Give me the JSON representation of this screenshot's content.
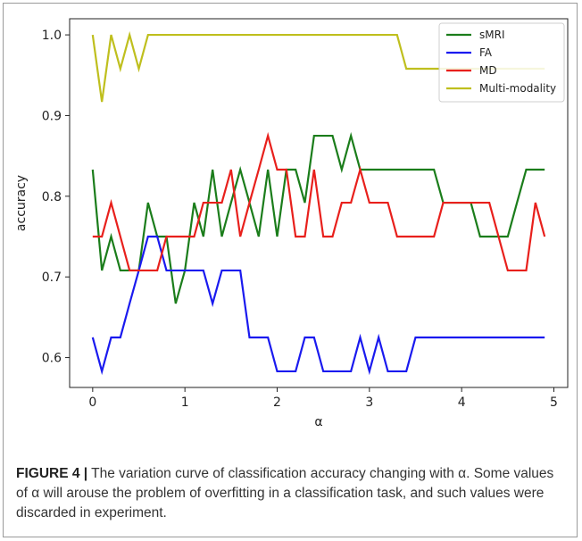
{
  "caption": {
    "figure_label": "FIGURE 4 |",
    "text": "The variation curve of classification accuracy changing with α. Some values of α will arouse the problem of overfitting in a classification task, and such values were discarded in experiment."
  },
  "chart_data": {
    "type": "line",
    "title": "",
    "xlabel": "α",
    "ylabel": "accuracy",
    "xlim": [
      -0.25,
      5.15
    ],
    "ylim": [
      0.563,
      1.02
    ],
    "xticks": [
      0,
      1,
      2,
      3,
      4,
      5
    ],
    "yticks": [
      0.6,
      0.7,
      0.8,
      0.9,
      1.0
    ],
    "xtick_labels": [
      "0",
      "1",
      "2",
      "3",
      "4",
      "5"
    ],
    "ytick_labels": [
      "0.6",
      "0.7",
      "0.8",
      "0.9",
      "1.0"
    ],
    "grid": false,
    "legend_position": "top-right",
    "x": [
      0.0,
      0.1,
      0.2,
      0.3,
      0.4,
      0.5,
      0.6,
      0.7,
      0.8,
      0.9,
      1.0,
      1.1,
      1.2,
      1.3,
      1.4,
      1.5,
      1.6,
      1.7,
      1.8,
      1.9,
      2.0,
      2.1,
      2.2,
      2.3,
      2.4,
      2.5,
      2.6,
      2.7,
      2.8,
      2.9,
      3.0,
      3.1,
      3.2,
      3.3,
      3.4,
      3.5,
      3.6,
      3.7,
      3.8,
      3.9,
      4.0,
      4.1,
      4.2,
      4.3,
      4.4,
      4.5,
      4.6,
      4.7,
      4.8,
      4.9
    ],
    "series": [
      {
        "name": "sMRI",
        "color": "#1b7d1b",
        "values": [
          0.833,
          0.708,
          0.75,
          0.708,
          0.708,
          0.708,
          0.792,
          0.75,
          0.75,
          0.667,
          0.708,
          0.792,
          0.75,
          0.833,
          0.75,
          0.792,
          0.833,
          0.792,
          0.75,
          0.833,
          0.75,
          0.833,
          0.833,
          0.792,
          0.875,
          0.875,
          0.875,
          0.833,
          0.875,
          0.833,
          0.833,
          0.833,
          0.833,
          0.833,
          0.833,
          0.833,
          0.833,
          0.833,
          0.792,
          0.792,
          0.792,
          0.792,
          0.75,
          0.75,
          0.75,
          0.75,
          0.792,
          0.833,
          0.833,
          0.833
        ]
      },
      {
        "name": "FA",
        "color": "#1a1aef",
        "values": [
          0.625,
          0.583,
          0.625,
          0.625,
          0.667,
          0.708,
          0.75,
          0.75,
          0.708,
          0.708,
          0.708,
          0.708,
          0.708,
          0.667,
          0.708,
          0.708,
          0.708,
          0.625,
          0.625,
          0.625,
          0.583,
          0.583,
          0.583,
          0.625,
          0.625,
          0.583,
          0.583,
          0.583,
          0.583,
          0.625,
          0.583,
          0.625,
          0.583,
          0.583,
          0.583,
          0.625,
          0.625,
          0.625,
          0.625,
          0.625,
          0.625,
          0.625,
          0.625,
          0.625,
          0.625,
          0.625,
          0.625,
          0.625,
          0.625,
          0.625
        ]
      },
      {
        "name": "MD",
        "color": "#e8201c",
        "values": [
          0.75,
          0.75,
          0.792,
          0.75,
          0.708,
          0.708,
          0.708,
          0.708,
          0.75,
          0.75,
          0.75,
          0.75,
          0.792,
          0.792,
          0.792,
          0.833,
          0.75,
          0.792,
          0.833,
          0.875,
          0.833,
          0.833,
          0.75,
          0.75,
          0.833,
          0.75,
          0.75,
          0.792,
          0.792,
          0.833,
          0.792,
          0.792,
          0.792,
          0.75,
          0.75,
          0.75,
          0.75,
          0.75,
          0.792,
          0.792,
          0.792,
          0.792,
          0.792,
          0.792,
          0.75,
          0.708,
          0.708,
          0.708,
          0.792,
          0.75
        ]
      },
      {
        "name": "Multi-modality",
        "color": "#bfbf1e",
        "values": [
          1.0,
          0.917,
          1.0,
          0.958,
          1.0,
          0.958,
          1.0,
          1.0,
          1.0,
          1.0,
          1.0,
          1.0,
          1.0,
          1.0,
          1.0,
          1.0,
          1.0,
          1.0,
          1.0,
          1.0,
          1.0,
          1.0,
          1.0,
          1.0,
          1.0,
          1.0,
          1.0,
          1.0,
          1.0,
          1.0,
          1.0,
          1.0,
          1.0,
          1.0,
          0.958,
          0.958,
          0.958,
          0.958,
          0.958,
          0.958,
          0.958,
          0.958,
          0.958,
          0.958,
          0.958,
          0.958,
          0.958,
          0.958,
          0.958,
          0.958
        ]
      }
    ]
  }
}
